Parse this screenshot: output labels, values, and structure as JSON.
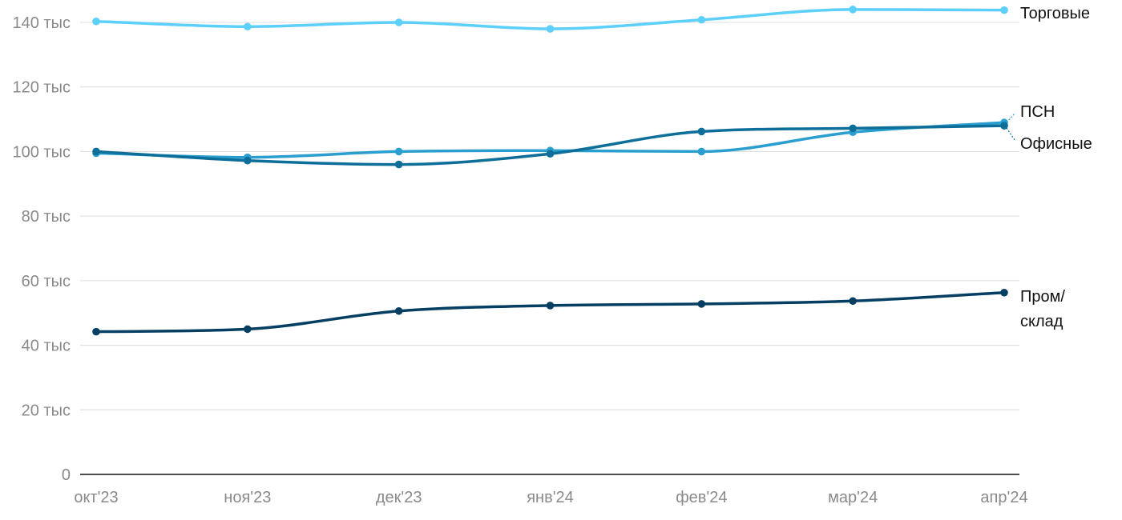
{
  "chart_data": {
    "type": "line",
    "title": "",
    "xlabel": "",
    "ylabel": "",
    "categories": [
      "окт'23",
      "ноя'23",
      "дек'23",
      "янв'24",
      "фев'24",
      "мар'24",
      "апр'24"
    ],
    "ylim": [
      0,
      140000
    ],
    "y_ticks": [
      {
        "value": 0,
        "label": "0"
      },
      {
        "value": 20000,
        "label": "20 тыс"
      },
      {
        "value": 40000,
        "label": "40 тыс"
      },
      {
        "value": 60000,
        "label": "60 тыс"
      },
      {
        "value": 80000,
        "label": "80 тыс"
      },
      {
        "value": 100000,
        "label": "100 тыс"
      },
      {
        "value": 120000,
        "label": "120 тыс"
      },
      {
        "value": 140000,
        "label": "140 тыс"
      }
    ],
    "grid": true,
    "legend": "inline-right",
    "series": [
      {
        "name": "Торговые",
        "label_lines": [
          "Торговые"
        ],
        "color": "#5ccffa",
        "values": [
          140300,
          138700,
          140000,
          138000,
          140800,
          144000,
          143800
        ]
      },
      {
        "name": "ПСН",
        "label_lines": [
          "ПСН"
        ],
        "color": "#2a9fcf",
        "values": [
          99500,
          98200,
          100000,
          100300,
          100000,
          106000,
          109000
        ]
      },
      {
        "name": "Офисные",
        "label_lines": [
          "Офисные"
        ],
        "color": "#0d6e99",
        "values": [
          100000,
          97200,
          96000,
          99300,
          106200,
          107200,
          108000
        ]
      },
      {
        "name": "Пром/склад",
        "label_lines": [
          "Пром/",
          "склад"
        ],
        "color": "#053e63",
        "values": [
          44200,
          45000,
          50600,
          52300,
          52800,
          53700,
          56300
        ]
      }
    ]
  }
}
